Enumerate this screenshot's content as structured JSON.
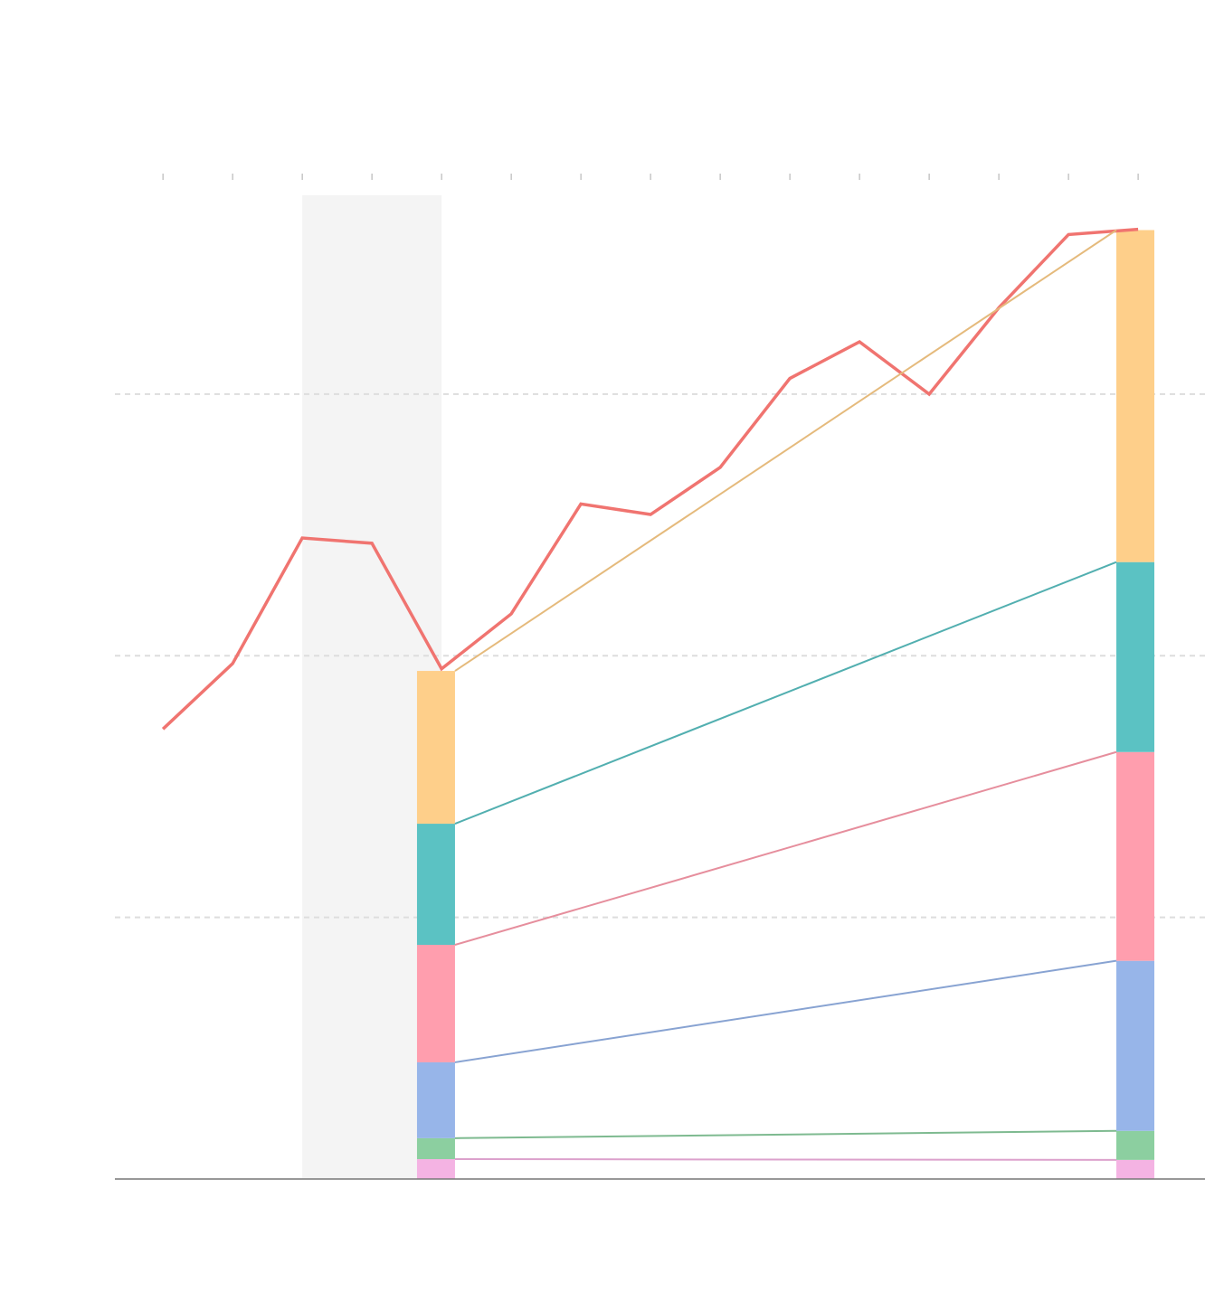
{
  "chart_data": [
    {
      "type": "line",
      "x": [
        0,
        1,
        2,
        3,
        4,
        5,
        6,
        7,
        8,
        9,
        10,
        11,
        12,
        13,
        14
      ],
      "values": [
        172,
        197,
        245,
        243,
        195,
        216,
        258,
        254,
        272,
        306,
        320,
        300,
        333,
        361,
        363
      ],
      "color": "#f07470",
      "xlim": [
        -0.69,
        14.96
      ],
      "xticks": [
        0,
        1,
        2,
        3,
        4,
        5,
        6,
        7,
        8,
        9,
        10,
        11,
        12,
        13,
        14
      ],
      "ylim": [
        0,
        376
      ],
      "yticks": [
        0,
        100,
        200,
        300
      ],
      "grid": true,
      "highlight": [
        2,
        4
      ]
    },
    {
      "type": "stacked_bar",
      "x": [
        3.92,
        13.96
      ],
      "xlim": [
        -0.69,
        14.96
      ],
      "ylim": [
        0,
        376
      ],
      "series": [
        {
          "color": "#f4b3e3",
          "values": [
            7.6,
            7.3
          ]
        },
        {
          "color": "#8ccfa0",
          "values": [
            8.0,
            11.1
          ]
        },
        {
          "color": "#97b5e9",
          "values": [
            29.0,
            65.0
          ]
        },
        {
          "color": "#ff9eae",
          "values": [
            44.9,
            79.8
          ]
        },
        {
          "color": "#5bc2c3",
          "values": [
            46.3,
            72.6
          ]
        },
        {
          "color": "#fecf8a",
          "values": [
            58.4,
            126.9
          ]
        }
      ]
    }
  ]
}
